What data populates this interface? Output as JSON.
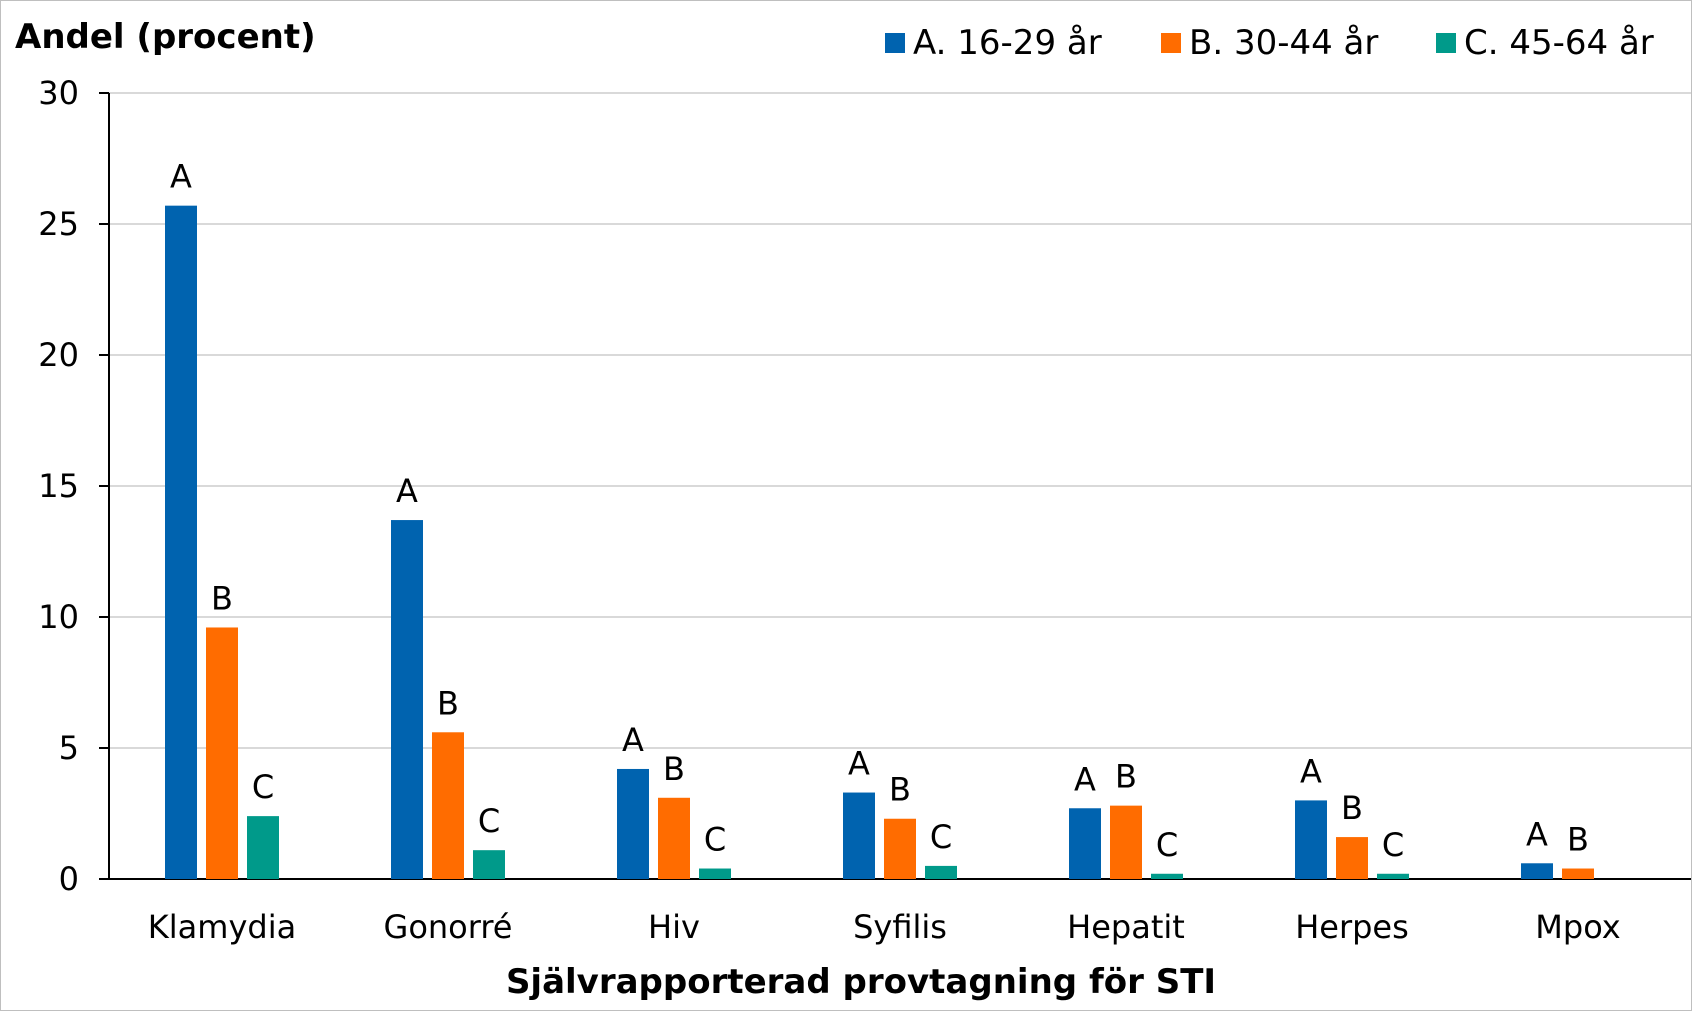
{
  "chart_data": {
    "type": "bar",
    "ylabel": "Andel (procent)",
    "xlabel": "Självrapporterad provtagning för STI",
    "ylim": [
      0,
      30
    ],
    "yticks": [
      0,
      5,
      10,
      15,
      20,
      25,
      30
    ],
    "grid": true,
    "legend_position": "top-right",
    "categories": [
      "Klamydia",
      "Gonorré",
      "Hiv",
      "Syfilis",
      "Hepatit",
      "Herpes",
      "Mpox"
    ],
    "series": [
      {
        "name": "A. 16-29 år",
        "label": "A",
        "color": "#0063af",
        "values": [
          25.7,
          13.7,
          4.2,
          3.3,
          2.7,
          3.0,
          0.6
        ]
      },
      {
        "name": "B. 30-44 år",
        "label": "B",
        "color": "#ff6c00",
        "values": [
          9.6,
          5.6,
          3.1,
          2.3,
          2.8,
          1.6,
          0.4
        ]
      },
      {
        "name": "C. 45-64 år",
        "label": "C",
        "color": "#009a8a",
        "values": [
          2.4,
          1.1,
          0.4,
          0.5,
          0.2,
          0.2,
          null
        ]
      }
    ]
  }
}
